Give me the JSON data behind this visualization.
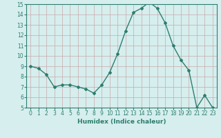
{
  "x": [
    0,
    1,
    2,
    3,
    4,
    5,
    6,
    7,
    8,
    9,
    10,
    11,
    12,
    13,
    14,
    15,
    16,
    17,
    18,
    19,
    20,
    21,
    22,
    23
  ],
  "y": [
    9.0,
    8.8,
    8.2,
    7.0,
    7.2,
    7.2,
    7.0,
    6.8,
    6.4,
    7.2,
    8.4,
    10.2,
    12.4,
    14.2,
    14.6,
    15.2,
    14.6,
    13.2,
    11.0,
    9.6,
    8.6,
    5.0,
    6.2,
    5.0
  ],
  "line_color": "#2d7d6e",
  "marker": "D",
  "markersize": 2.0,
  "linewidth": 1.0,
  "xlabel": "Humidex (Indice chaleur)",
  "ylim": [
    5,
    15
  ],
  "xlim": [
    -0.5,
    23.5
  ],
  "yticks": [
    5,
    6,
    7,
    8,
    9,
    10,
    11,
    12,
    13,
    14,
    15
  ],
  "xticks": [
    0,
    1,
    2,
    3,
    4,
    5,
    6,
    7,
    8,
    9,
    10,
    11,
    12,
    13,
    14,
    15,
    16,
    17,
    18,
    19,
    20,
    21,
    22,
    23
  ],
  "background_color": "#d6eeee",
  "grid_color": "#b8d4d4",
  "tick_labelsize": 5.5,
  "xlabel_fontsize": 6.5
}
